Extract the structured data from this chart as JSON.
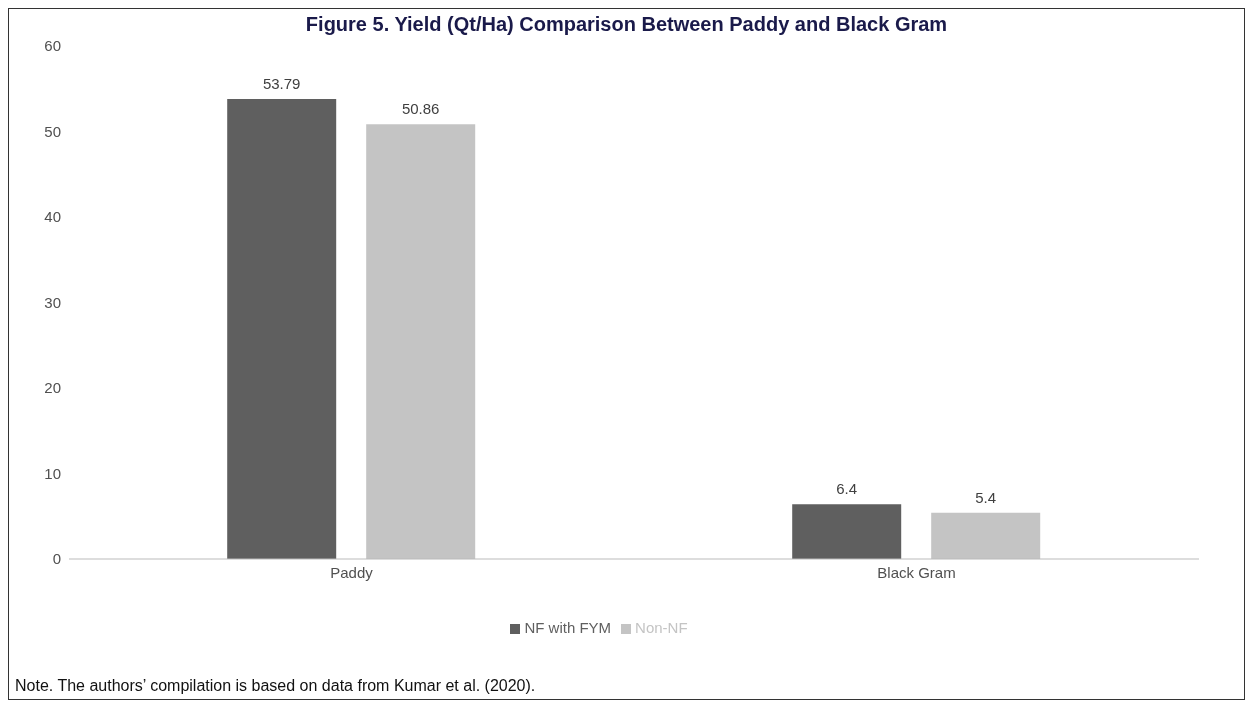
{
  "chart_data": {
    "type": "bar",
    "title": "Figure 5. Yield (Qt/Ha) Comparison Between Paddy and Black Gram",
    "categories": [
      "Paddy",
      "Black Gram"
    ],
    "series": [
      {
        "name": "NF with FYM",
        "color": "#5f5f5f",
        "values": [
          53.79,
          6.4
        ]
      },
      {
        "name": "Non-NF",
        "color": "#c4c4c4",
        "values": [
          50.86,
          5.4
        ]
      }
    ],
    "ylim": [
      0,
      60
    ],
    "yticks": [
      0,
      10,
      20,
      30,
      40,
      50,
      60
    ],
    "grid": false,
    "legend": "bottom",
    "data_labels": true,
    "annotations": [
      "Note. The authors’ compilation is based on data from Kumar et al. (2020)."
    ]
  }
}
